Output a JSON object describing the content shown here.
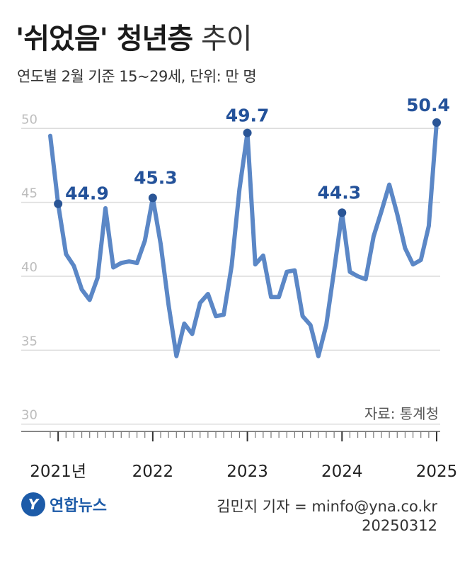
{
  "header": {
    "title_main": "'쉬었음' 청년층",
    "title_sub": "추이",
    "subtitle": "연도별 2월 기준 15~29세, 단위: 만 명"
  },
  "source": "자료: 통계청",
  "logo": {
    "mark": "Y",
    "text": "연합뉴스"
  },
  "credit": {
    "reporter": "김민지 기자 = minfo@yna.co.kr",
    "date": "20250312"
  },
  "colors": {
    "line": "#5b87c6",
    "marker": "#2a5596",
    "label": "#24529a",
    "grid": "#dcdcdc",
    "axis": "#666666"
  },
  "chart_data": {
    "type": "line",
    "title": "'쉬었음' 청년층 추이",
    "subtitle": "연도별 2월 기준 15~29세, 단위: 만 명",
    "ylim": [
      28.5,
      51.5
    ],
    "yticks": [
      50,
      45,
      40,
      35,
      30
    ],
    "xticks": [
      {
        "index": 1,
        "label": "2021년"
      },
      {
        "index": 13,
        "label": "2022"
      },
      {
        "index": 25,
        "label": "2023"
      },
      {
        "index": 37,
        "label": "2024"
      },
      {
        "index": 49,
        "label": "2025"
      }
    ],
    "n_minor_ticks": 50,
    "series": [
      {
        "values": [
          49.5,
          44.9,
          41.5,
          40.7,
          39.1,
          38.4,
          39.9,
          44.6,
          40.6,
          40.9,
          41.0,
          40.9,
          42.4,
          45.3,
          42.2,
          38.1,
          34.6,
          36.8,
          36.1,
          38.2,
          38.8,
          37.3,
          37.4,
          40.7,
          45.9,
          49.7,
          40.8,
          41.4,
          38.6,
          38.6,
          40.3,
          40.4,
          37.3,
          36.7,
          34.6,
          36.7,
          40.4,
          44.3,
          40.3,
          40.0,
          39.8,
          42.7,
          44.4,
          46.2,
          44.2,
          41.9,
          40.8,
          41.1,
          43.4,
          50.4
        ]
      }
    ],
    "annotations": [
      {
        "index": 1,
        "label": "44.9"
      },
      {
        "index": 13,
        "label": "45.3"
      },
      {
        "index": 25,
        "label": "49.7"
      },
      {
        "index": 37,
        "label": "44.3"
      },
      {
        "index": 49,
        "label": "50.4"
      }
    ]
  }
}
